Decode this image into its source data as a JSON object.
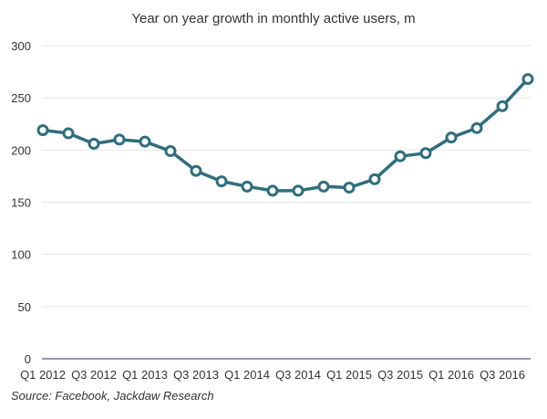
{
  "chart_data": {
    "type": "line",
    "title": "Year on year growth in monthly active users, m",
    "xlabel": "",
    "ylabel": "",
    "ylim": [
      0,
      300
    ],
    "yticks": [
      0,
      50,
      100,
      150,
      200,
      250,
      300
    ],
    "grid": true,
    "legend": "none",
    "color": "#2f6e7d",
    "categories": [
      "Q1 2012",
      "Q2 2012",
      "Q3 2012",
      "Q4 2012",
      "Q1 2013",
      "Q2 2013",
      "Q3 2013",
      "Q4 2013",
      "Q1 2014",
      "Q2 2014",
      "Q3 2014",
      "Q4 2014",
      "Q1 2015",
      "Q2 2015",
      "Q3 2015",
      "Q4 2015",
      "Q1 2016",
      "Q2 2016",
      "Q3 2016",
      "Q4 2016"
    ],
    "tick_labels": [
      "Q1 2012",
      "Q3 2012",
      "Q1 2013",
      "Q3 2013",
      "Q1 2014",
      "Q3 2014",
      "Q1 2015",
      "Q3 2015",
      "Q1 2016",
      "Q3 2016"
    ],
    "values": [
      219,
      216,
      206,
      210,
      208,
      199,
      180,
      170,
      165,
      161,
      161,
      165,
      164,
      172,
      194,
      197,
      212,
      221,
      242,
      268
    ],
    "source": "Source: Facebook, Jackdaw Research"
  }
}
